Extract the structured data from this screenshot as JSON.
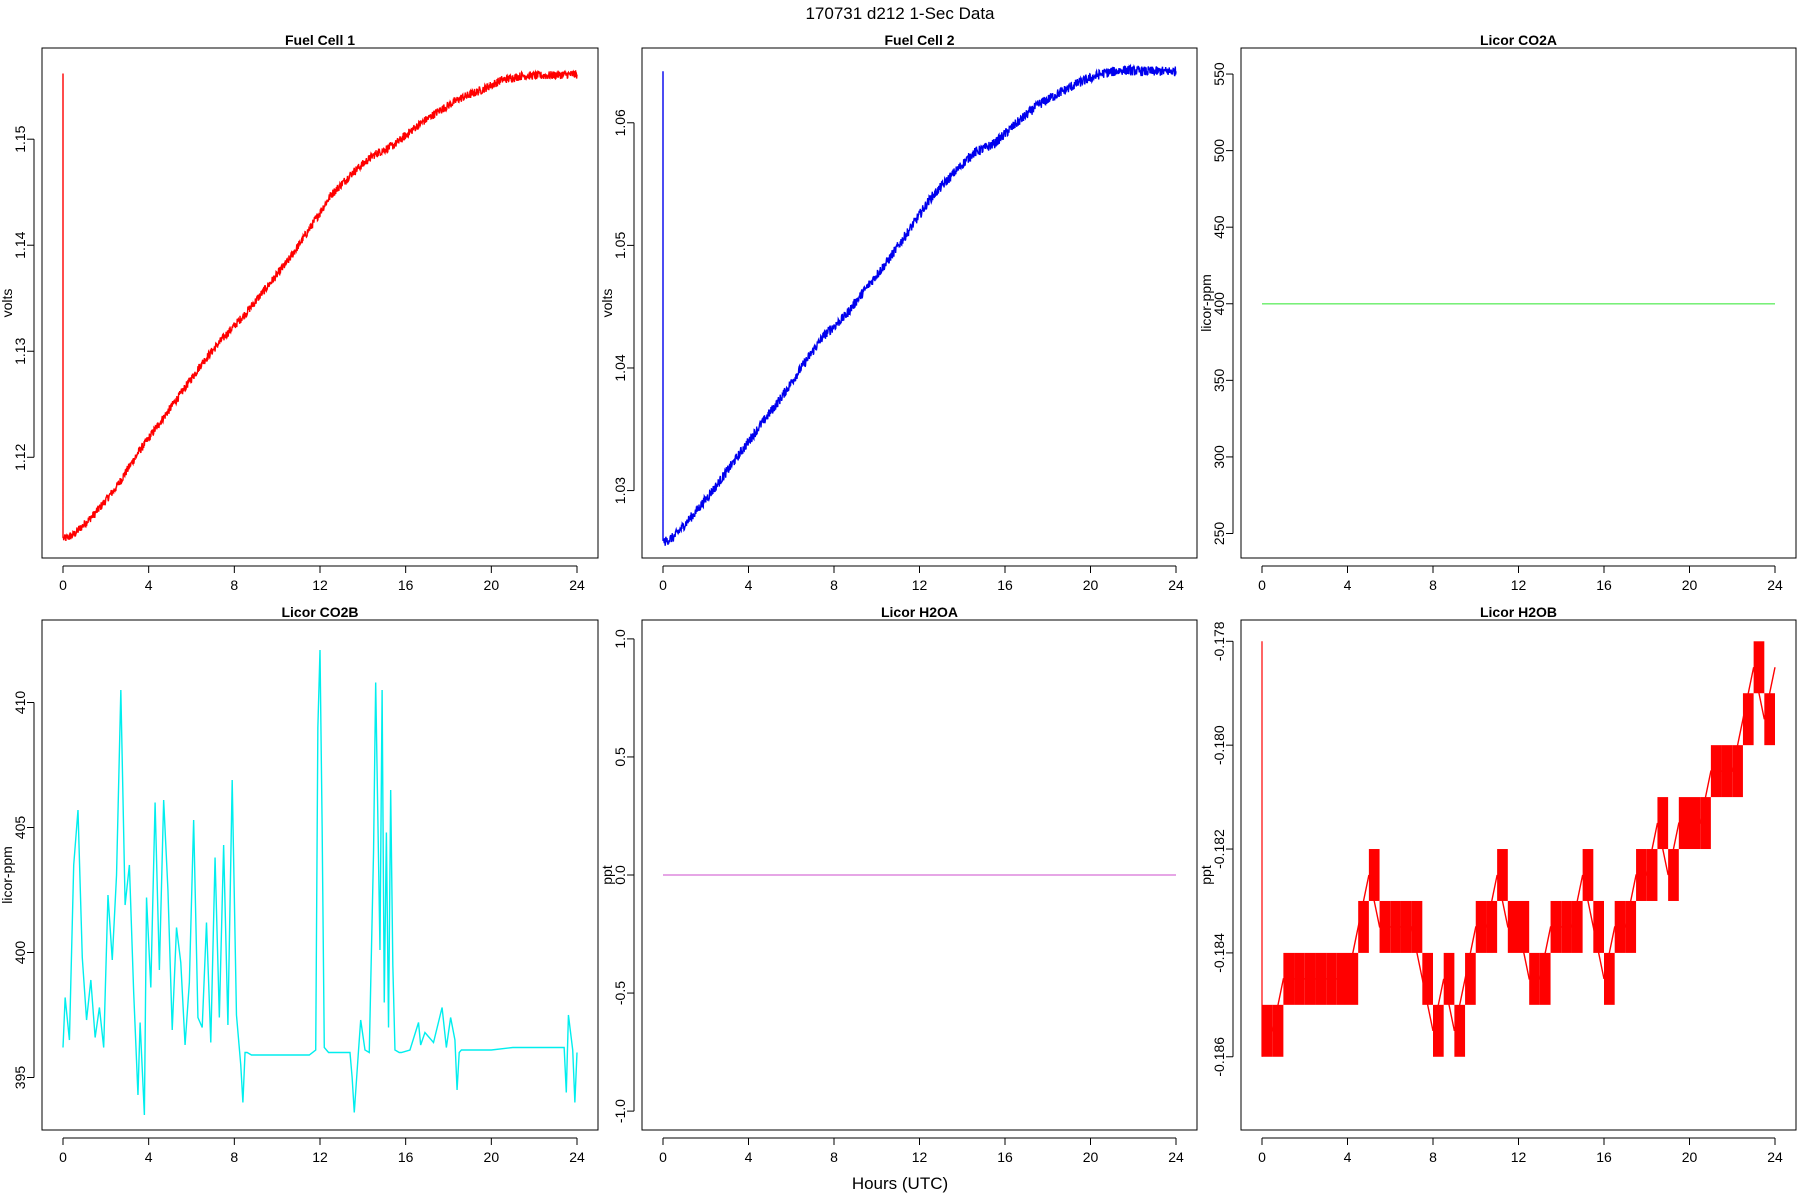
{
  "figure": {
    "title": "170731   d212   1-Sec Data",
    "xlabel": "Hours (UTC)"
  },
  "colors": {
    "fuel_cell_1": "#ff0000",
    "fuel_cell_2": "#0000ee",
    "co2a": "#66ee66",
    "co2b": "#00eeee",
    "h2oa": "#dd88dd",
    "h2ob": "#ff0000"
  },
  "chart_data": [
    {
      "type": "line",
      "title": "Fuel Cell 1",
      "xlabel": "",
      "ylabel": "volts",
      "xlim": [
        0,
        24
      ],
      "ylim": [
        1.1105,
        1.1586
      ],
      "xticks": [
        "0",
        "4",
        "8",
        "12",
        "16",
        "20",
        "24"
      ],
      "yticks": [
        "1.12",
        "1.13",
        "1.14",
        "1.15"
      ],
      "series": [
        {
          "color": "#ff0000",
          "x": [
            0,
            0,
            0.05,
            0.5,
            1.5,
            2.5,
            3.5,
            4.5,
            5.5,
            6.5,
            7.5,
            8.5,
            9.5,
            10.5,
            11.5,
            12.5,
            13.5,
            14.5,
            15.5,
            16.5,
            17.5,
            18.5,
            19.5,
            20.5,
            21.5,
            22.5,
            23.5,
            24
          ],
          "y": [
            1.1562,
            1.1124,
            1.1123,
            1.1127,
            1.1147,
            1.1172,
            1.1204,
            1.1232,
            1.126,
            1.1289,
            1.1313,
            1.1335,
            1.136,
            1.1385,
            1.1415,
            1.1447,
            1.1468,
            1.1485,
            1.1495,
            1.1512,
            1.1526,
            1.1538,
            1.1546,
            1.1556,
            1.156,
            1.156,
            1.1561,
            1.1561
          ],
          "noise": 0.0004
        }
      ]
    },
    {
      "type": "line",
      "title": "Fuel Cell 2",
      "xlabel": "",
      "ylabel": "volts",
      "xlim": [
        0,
        24
      ],
      "ylim": [
        1.0245,
        1.0661
      ],
      "xticks": [
        "0",
        "4",
        "8",
        "12",
        "16",
        "20",
        "24"
      ],
      "yticks": [
        "1.03",
        "1.04",
        "1.05",
        "1.06"
      ],
      "series": [
        {
          "color": "#0000ee",
          "x": [
            0,
            0,
            0.05,
            0.5,
            1.5,
            2.5,
            3.5,
            4.5,
            5.5,
            6.5,
            7.5,
            8.5,
            9.5,
            10.5,
            11.5,
            12.5,
            13.5,
            14.5,
            15.5,
            16.5,
            17.5,
            18.5,
            19.5,
            20.5,
            21.5,
            22.5,
            23.5,
            24
          ],
          "y": [
            1.0642,
            1.0259,
            1.0258,
            1.0262,
            1.0282,
            1.0304,
            1.0328,
            1.0352,
            1.0375,
            1.0401,
            1.0426,
            1.0442,
            1.0465,
            1.0487,
            1.0512,
            1.0538,
            1.0557,
            1.0575,
            1.0583,
            1.0599,
            1.0614,
            1.0624,
            1.0633,
            1.064,
            1.0643,
            1.0642,
            1.0642,
            1.0642
          ],
          "noise": 0.0004
        }
      ]
    },
    {
      "type": "line",
      "title": "Licor CO2A",
      "xlabel": "",
      "ylabel": "licor-ppm",
      "xlim": [
        0,
        24
      ],
      "ylim": [
        234,
        567
      ],
      "xticks": [
        "0",
        "4",
        "8",
        "12",
        "16",
        "20",
        "24"
      ],
      "yticks": [
        "250",
        "300",
        "350",
        "400",
        "450",
        "500",
        "550"
      ],
      "series": [
        {
          "color": "#66ee66",
          "x": [
            0,
            24
          ],
          "y": [
            400,
            400
          ],
          "noise": 0
        }
      ]
    },
    {
      "type": "line",
      "title": "Licor CO2B",
      "xlabel": "",
      "ylabel": "licor-ppm",
      "xlim": [
        0,
        24
      ],
      "ylim": [
        392.9,
        413.3
      ],
      "xticks": [
        "0",
        "4",
        "8",
        "12",
        "16",
        "20",
        "24"
      ],
      "yticks": [
        "395",
        "400",
        "405",
        "410"
      ],
      "series": [
        {
          "color": "#00eeee",
          "x": [
            0,
            0.1,
            0.3,
            0.5,
            0.7,
            0.9,
            1.1,
            1.3,
            1.5,
            1.7,
            1.9,
            2.1,
            2.3,
            2.5,
            2.7,
            2.9,
            3.1,
            3.3,
            3.5,
            3.6,
            3.8,
            3.9,
            4.1,
            4.3,
            4.5,
            4.7,
            4.9,
            5.1,
            5.3,
            5.5,
            5.7,
            5.9,
            6.1,
            6.3,
            6.5,
            6.7,
            6.9,
            7.1,
            7.3,
            7.5,
            7.7,
            7.9,
            8.1,
            8.3,
            8.4,
            8.5,
            8.6,
            8.8,
            10,
            11.5,
            11.8,
            11.9,
            12,
            12.1,
            12.2,
            12.4,
            12.8,
            13.4,
            13.5,
            13.6,
            13.8,
            13.9,
            14.1,
            14.3,
            14.5,
            14.6,
            14.8,
            14.9,
            15,
            15.1,
            15.2,
            15.3,
            15.4,
            15.5,
            15.7,
            15.8,
            16.2,
            16.6,
            16.7,
            16.9,
            17.3,
            17.7,
            17.9,
            18.1,
            18.3,
            18.4,
            18.5,
            18.6,
            19,
            20,
            21,
            22,
            23.4,
            23.5,
            23.6,
            23.8,
            23.9,
            24
          ],
          "y": [
            396.2,
            398.2,
            396.5,
            403.5,
            405.7,
            399.8,
            397.3,
            398.9,
            396.6,
            397.8,
            396.2,
            402.3,
            399.7,
            403.1,
            410.5,
            401.9,
            403.5,
            398.4,
            394.3,
            397.2,
            393.5,
            402.2,
            398.6,
            406.0,
            399.3,
            406.1,
            402.5,
            396.9,
            401.0,
            399.6,
            396.3,
            398.8,
            405.3,
            397.4,
            397.0,
            401.2,
            396.4,
            403.8,
            397.4,
            404.3,
            397.1,
            406.9,
            397.5,
            395.5,
            394.0,
            396.0,
            396.0,
            395.9,
            395.9,
            395.9,
            396.1,
            409.0,
            412.1,
            405.0,
            396.2,
            396.0,
            396.0,
            396.0,
            395.0,
            393.6,
            396.1,
            397.3,
            396.1,
            396.0,
            404.0,
            410.8,
            400.1,
            410.5,
            398.0,
            404.8,
            397.0,
            406.5,
            399.5,
            396.1,
            396.0,
            396.0,
            396.1,
            397.2,
            396.3,
            396.8,
            396.4,
            397.8,
            396.2,
            397.4,
            396.5,
            394.5,
            396.0,
            396.1,
            396.1,
            396.1,
            396.2,
            396.2,
            396.2,
            394.4,
            397.5,
            396.1,
            394.0,
            396.0
          ],
          "noise": 0
        }
      ]
    },
    {
      "type": "line",
      "title": "Licor H2OA",
      "xlabel": "",
      "ylabel": "ppt",
      "xlim": [
        0,
        24
      ],
      "ylim": [
        -1.08,
        1.08
      ],
      "xticks": [
        "0",
        "4",
        "8",
        "12",
        "16",
        "20",
        "24"
      ],
      "yticks": [
        "-1.0",
        "-0.5",
        "0.0",
        "0.5",
        "1.0"
      ],
      "series": [
        {
          "color": "#dd88dd",
          "x": [
            0,
            24
          ],
          "y": [
            0,
            0
          ],
          "noise": 0
        }
      ]
    },
    {
      "type": "line",
      "title": "Licor H2OB",
      "xlabel": "",
      "ylabel": "ppt",
      "xlim": [
        0,
        24
      ],
      "ylim": [
        -0.18741,
        -0.17759
      ],
      "xticks": [
        "0",
        "4",
        "8",
        "12",
        "16",
        "20",
        "24"
      ],
      "yticks": [
        "-0.186",
        "-0.184",
        "-0.182",
        "-0.180",
        "-0.178"
      ],
      "series": [
        {
          "color": "#ff0000",
          "x": [
            0,
            0.5,
            1,
            1.5,
            2,
            2.5,
            3,
            3.5,
            4,
            4.5,
            5,
            5.5,
            6,
            6.5,
            7,
            7.5,
            8,
            8.5,
            9,
            9.5,
            10,
            10.5,
            11,
            11.5,
            12,
            12.5,
            13,
            13.5,
            14,
            14.5,
            15,
            15.5,
            16,
            16.5,
            17,
            17.5,
            18,
            18.5,
            19,
            19.5,
            20,
            20.5,
            21,
            21.5,
            22,
            22.5,
            23,
            23.5,
            24
          ],
          "y": [
            -0.1855,
            -0.1855,
            -0.1845,
            -0.1845,
            -0.1845,
            -0.1845,
            -0.1845,
            -0.1845,
            -0.1845,
            -0.1835,
            -0.1825,
            -0.1835,
            -0.1835,
            -0.1835,
            -0.1835,
            -0.1845,
            -0.1855,
            -0.1845,
            -0.1855,
            -0.1845,
            -0.1835,
            -0.1835,
            -0.1825,
            -0.1835,
            -0.1835,
            -0.1845,
            -0.1845,
            -0.1835,
            -0.1835,
            -0.1835,
            -0.1825,
            -0.1835,
            -0.1845,
            -0.1835,
            -0.1835,
            -0.1825,
            -0.1825,
            -0.1815,
            -0.1825,
            -0.1815,
            -0.1815,
            -0.1815,
            -0.1805,
            -0.1805,
            -0.1805,
            -0.1795,
            -0.1785,
            -0.1795,
            -0.1785
          ],
          "band": 0.001,
          "noise": 0
        }
      ]
    }
  ]
}
